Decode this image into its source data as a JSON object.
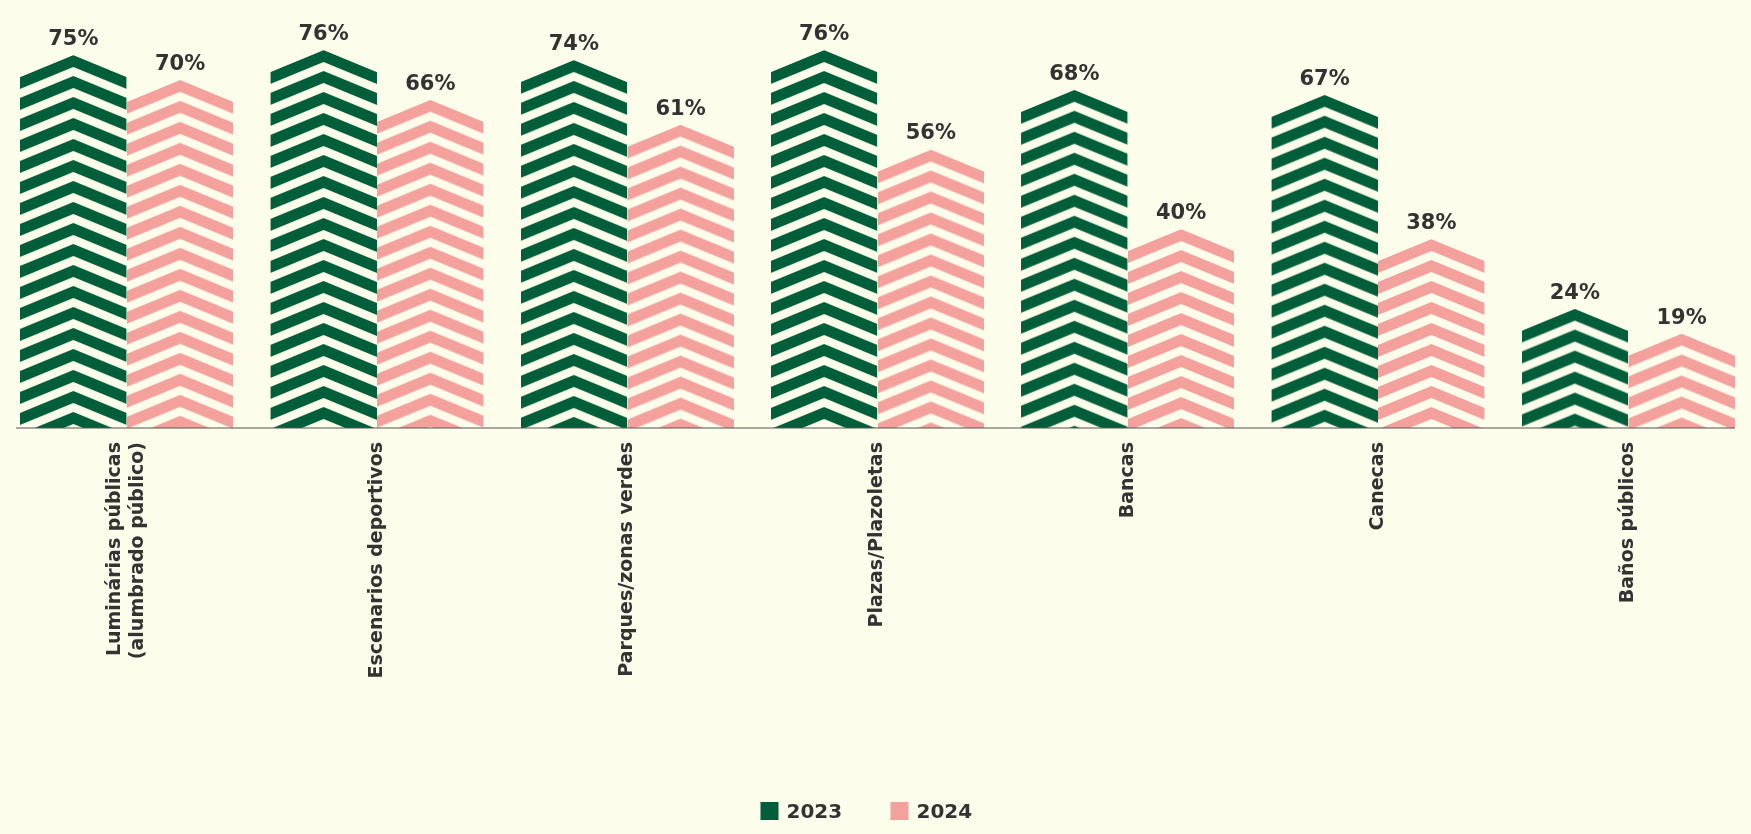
{
  "chart_data": {
    "type": "bar",
    "categories": [
      "Luminárias públicas\n(alumbrado público)",
      "Escenarios deportivos",
      "Parques/zonas verdes",
      "Plazas/Plazoletas",
      "Bancas",
      "Canecas",
      "Baños públicos"
    ],
    "series": [
      {
        "name": "2023",
        "color": "#005f3a",
        "values": [
          75,
          76,
          74,
          76,
          68,
          67,
          24
        ],
        "value_labels": [
          "75%",
          "76%",
          "74%",
          "76%",
          "68%",
          "67%",
          "24%"
        ]
      },
      {
        "name": "2024",
        "color": "#f4a09c",
        "values": [
          70,
          66,
          61,
          56,
          40,
          38,
          19
        ],
        "value_labels": [
          "70%",
          "66%",
          "61%",
          "56%",
          "40%",
          "38%",
          "19%"
        ]
      }
    ],
    "legend": "bottom",
    "grid": false
  }
}
